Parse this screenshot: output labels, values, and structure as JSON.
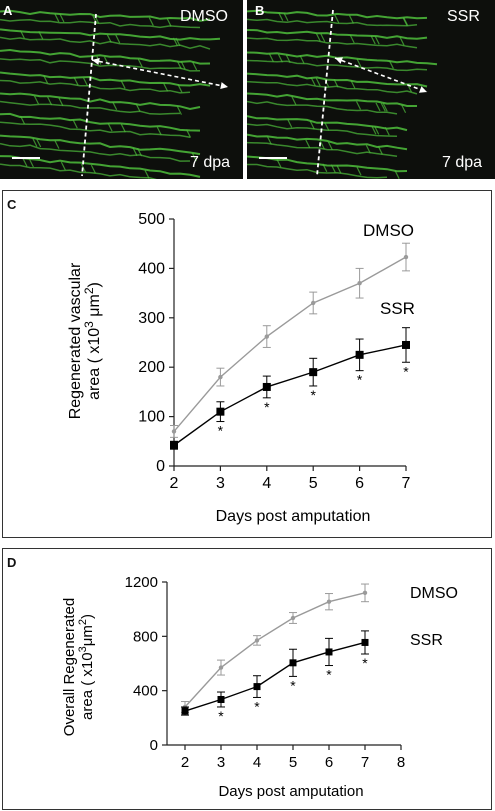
{
  "panels": {
    "A": {
      "label": "A",
      "title": "DMSO",
      "time": "7 dpa"
    },
    "B": {
      "label": "B",
      "title": "SSR",
      "time": "7 dpa"
    }
  },
  "colors": {
    "dmso": "#9a9a9a",
    "ssr": "#000000",
    "vessel": "#4fbe3c"
  },
  "chart_data": [
    {
      "panel": "C",
      "type": "line",
      "xlabel": "Days post amputation",
      "ylabel_line1": "Regenerated vascular",
      "ylabel_line2": "area ( x10",
      "ylabel_sup": "3",
      "ylabel_unit": " μm",
      "ylabel_sup2": "2",
      "ylabel_end": ")",
      "xlim": [
        2,
        7
      ],
      "ylim": [
        0,
        500
      ],
      "xticks": [
        2,
        3,
        4,
        5,
        6,
        7
      ],
      "yticks": [
        0,
        100,
        200,
        300,
        400,
        500
      ],
      "x": [
        2,
        3,
        4,
        5,
        6,
        7
      ],
      "series": [
        {
          "name": "DMSO",
          "values": [
            70,
            180,
            262,
            330,
            370,
            423
          ],
          "errors": [
            12,
            18,
            22,
            22,
            30,
            28
          ]
        },
        {
          "name": "SSR",
          "values": [
            42,
            110,
            160,
            190,
            225,
            245
          ],
          "errors": [
            8,
            20,
            22,
            28,
            32,
            35
          ]
        }
      ],
      "significance": "*",
      "significant_x": [
        3,
        4,
        5,
        6,
        7
      ]
    },
    {
      "panel": "D",
      "type": "line",
      "xlabel": "Days post amputation",
      "ylabel_line1": "Overall Regenerated",
      "ylabel_line2": "area ( x10",
      "ylabel_sup": "3",
      "ylabel_unit": "μm",
      "ylabel_sup2": "2",
      "ylabel_end": ")",
      "xlim": [
        1.5,
        8
      ],
      "ylim": [
        0,
        1200
      ],
      "xticks": [
        2,
        3,
        4,
        5,
        6,
        7,
        8
      ],
      "yticks": [
        0,
        400,
        800,
        1200
      ],
      "x": [
        2,
        3,
        4,
        5,
        6,
        7
      ],
      "series": [
        {
          "name": "DMSO",
          "values": [
            280,
            570,
            770,
            935,
            1055,
            1120
          ],
          "errors": [
            40,
            55,
            35,
            40,
            60,
            65
          ]
        },
        {
          "name": "SSR",
          "values": [
            250,
            335,
            430,
            605,
            685,
            755
          ],
          "errors": [
            30,
            55,
            80,
            100,
            100,
            85
          ]
        }
      ],
      "significance": "*",
      "significant_x": [
        3,
        4,
        5,
        6,
        7
      ]
    }
  ]
}
